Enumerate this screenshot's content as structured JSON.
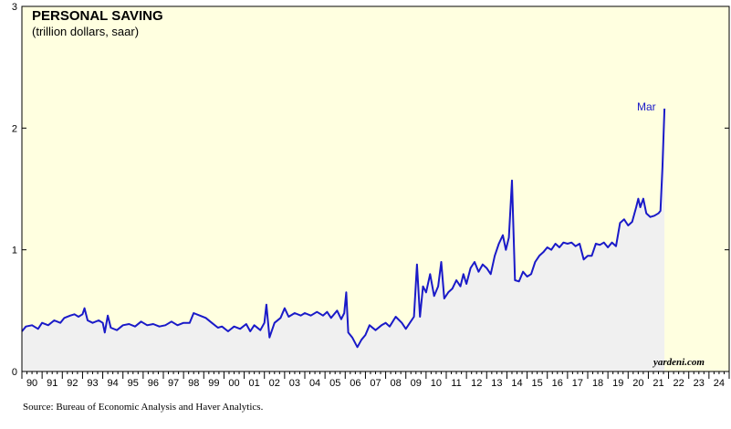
{
  "chart_data": {
    "type": "area",
    "title": "PERSONAL SAVING",
    "subtitle": "(trillion dollars, saar)",
    "source": "Source: Bureau of Economic Analysis and Haver Analytics.",
    "watermark": "yardeni.com",
    "end_label": "Mar",
    "x_tick_labels": [
      "90",
      "91",
      "92",
      "93",
      "94",
      "95",
      "96",
      "97",
      "98",
      "99",
      "00",
      "01",
      "02",
      "03",
      "04",
      "05",
      "06",
      "07",
      "08",
      "09",
      "10",
      "11",
      "12",
      "13",
      "14",
      "15",
      "16",
      "17",
      "18",
      "19",
      "20",
      "21",
      "22",
      "23",
      "24"
    ],
    "y_tick_labels": [
      "0",
      "1",
      "2",
      "3"
    ],
    "xlim": [
      1990.0,
      2025.0
    ],
    "ylim": [
      0,
      3
    ],
    "grid": false,
    "colors": {
      "line": "#1a1ac8",
      "area_fill": "#f0f0f0",
      "plot_background": "#ffffe0"
    },
    "series": [
      {
        "points": [
          [
            1990.0,
            0.33
          ],
          [
            1990.2,
            0.37
          ],
          [
            1990.5,
            0.38
          ],
          [
            1990.8,
            0.35
          ],
          [
            1991.0,
            0.4
          ],
          [
            1991.3,
            0.38
          ],
          [
            1991.6,
            0.42
          ],
          [
            1991.9,
            0.4
          ],
          [
            1992.1,
            0.44
          ],
          [
            1992.4,
            0.46
          ],
          [
            1992.6,
            0.47
          ],
          [
            1992.8,
            0.45
          ],
          [
            1993.0,
            0.47
          ],
          [
            1993.1,
            0.52
          ],
          [
            1993.25,
            0.42
          ],
          [
            1993.5,
            0.4
          ],
          [
            1993.8,
            0.42
          ],
          [
            1994.0,
            0.4
          ],
          [
            1994.1,
            0.32
          ],
          [
            1994.25,
            0.46
          ],
          [
            1994.4,
            0.36
          ],
          [
            1994.7,
            0.34
          ],
          [
            1995.0,
            0.38
          ],
          [
            1995.3,
            0.39
          ],
          [
            1995.6,
            0.37
          ],
          [
            1995.9,
            0.41
          ],
          [
            1996.2,
            0.38
          ],
          [
            1996.5,
            0.39
          ],
          [
            1996.8,
            0.37
          ],
          [
            1997.1,
            0.38
          ],
          [
            1997.4,
            0.41
          ],
          [
            1997.7,
            0.38
          ],
          [
            1998.0,
            0.4
          ],
          [
            1998.3,
            0.4
          ],
          [
            1998.5,
            0.48
          ],
          [
            1998.8,
            0.46
          ],
          [
            1999.1,
            0.44
          ],
          [
            1999.4,
            0.4
          ],
          [
            1999.7,
            0.36
          ],
          [
            1999.9,
            0.37
          ],
          [
            2000.2,
            0.33
          ],
          [
            2000.5,
            0.37
          ],
          [
            2000.8,
            0.35
          ],
          [
            2001.1,
            0.39
          ],
          [
            2001.3,
            0.33
          ],
          [
            2001.5,
            0.38
          ],
          [
            2001.8,
            0.34
          ],
          [
            2002.0,
            0.4
          ],
          [
            2002.1,
            0.55
          ],
          [
            2002.25,
            0.28
          ],
          [
            2002.5,
            0.4
          ],
          [
            2002.8,
            0.44
          ],
          [
            2003.0,
            0.52
          ],
          [
            2003.2,
            0.45
          ],
          [
            2003.5,
            0.48
          ],
          [
            2003.8,
            0.46
          ],
          [
            2004.0,
            0.48
          ],
          [
            2004.3,
            0.46
          ],
          [
            2004.6,
            0.49
          ],
          [
            2004.9,
            0.46
          ],
          [
            2005.1,
            0.49
          ],
          [
            2005.3,
            0.44
          ],
          [
            2005.6,
            0.5
          ],
          [
            2005.8,
            0.43
          ],
          [
            2005.95,
            0.48
          ],
          [
            2006.05,
            0.65
          ],
          [
            2006.15,
            0.32
          ],
          [
            2006.35,
            0.28
          ],
          [
            2006.6,
            0.2
          ],
          [
            2006.8,
            0.26
          ],
          [
            2007.0,
            0.3
          ],
          [
            2007.2,
            0.38
          ],
          [
            2007.5,
            0.34
          ],
          [
            2007.8,
            0.38
          ],
          [
            2008.0,
            0.4
          ],
          [
            2008.2,
            0.37
          ],
          [
            2008.5,
            0.45
          ],
          [
            2008.8,
            0.4
          ],
          [
            2009.0,
            0.35
          ],
          [
            2009.2,
            0.4
          ],
          [
            2009.4,
            0.45
          ],
          [
            2009.55,
            0.88
          ],
          [
            2009.7,
            0.45
          ],
          [
            2009.85,
            0.7
          ],
          [
            2010.0,
            0.65
          ],
          [
            2010.2,
            0.8
          ],
          [
            2010.4,
            0.62
          ],
          [
            2010.6,
            0.7
          ],
          [
            2010.75,
            0.9
          ],
          [
            2010.9,
            0.6
          ],
          [
            2011.1,
            0.65
          ],
          [
            2011.3,
            0.68
          ],
          [
            2011.5,
            0.75
          ],
          [
            2011.7,
            0.7
          ],
          [
            2011.85,
            0.8
          ],
          [
            2012.0,
            0.72
          ],
          [
            2012.2,
            0.85
          ],
          [
            2012.4,
            0.9
          ],
          [
            2012.6,
            0.82
          ],
          [
            2012.8,
            0.88
          ],
          [
            2013.0,
            0.85
          ],
          [
            2013.2,
            0.8
          ],
          [
            2013.4,
            0.95
          ],
          [
            2013.6,
            1.05
          ],
          [
            2013.8,
            1.12
          ],
          [
            2013.95,
            1.0
          ],
          [
            2014.1,
            1.1
          ],
          [
            2014.25,
            1.57
          ],
          [
            2014.4,
            0.75
          ],
          [
            2014.6,
            0.74
          ],
          [
            2014.8,
            0.82
          ],
          [
            2015.0,
            0.78
          ],
          [
            2015.2,
            0.8
          ],
          [
            2015.4,
            0.9
          ],
          [
            2015.6,
            0.95
          ],
          [
            2015.8,
            0.98
          ],
          [
            2016.0,
            1.02
          ],
          [
            2016.2,
            1.0
          ],
          [
            2016.4,
            1.05
          ],
          [
            2016.6,
            1.02
          ],
          [
            2016.8,
            1.06
          ],
          [
            2017.0,
            1.05
          ],
          [
            2017.2,
            1.06
          ],
          [
            2017.4,
            1.03
          ],
          [
            2017.6,
            1.05
          ],
          [
            2017.8,
            0.92
          ],
          [
            2018.0,
            0.95
          ],
          [
            2018.2,
            0.95
          ],
          [
            2018.4,
            1.05
          ],
          [
            2018.6,
            1.04
          ],
          [
            2018.8,
            1.06
          ],
          [
            2019.0,
            1.02
          ],
          [
            2019.2,
            1.06
          ],
          [
            2019.4,
            1.03
          ],
          [
            2019.6,
            1.22
          ],
          [
            2019.8,
            1.25
          ],
          [
            2020.0,
            1.2
          ],
          [
            2020.2,
            1.23
          ],
          [
            2020.4,
            1.35
          ],
          [
            2020.5,
            1.42
          ],
          [
            2020.6,
            1.35
          ],
          [
            2020.75,
            1.42
          ],
          [
            2020.9,
            1.3
          ],
          [
            2021.1,
            1.27
          ],
          [
            2021.3,
            1.28
          ],
          [
            2021.5,
            1.3
          ],
          [
            2021.6,
            1.32
          ],
          [
            2021.7,
            1.68
          ],
          [
            2021.8,
            2.16
          ]
        ]
      }
    ]
  }
}
